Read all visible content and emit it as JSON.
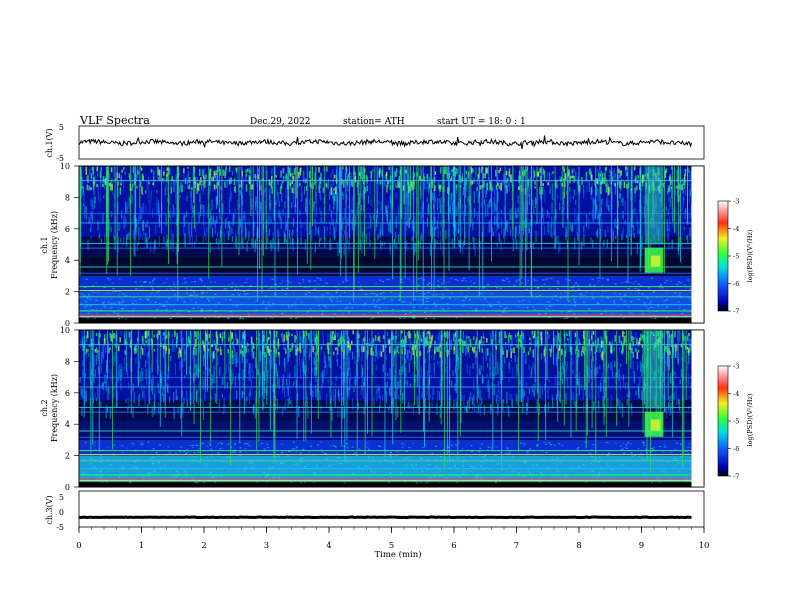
{
  "header": {
    "title": "VLF  Spectra",
    "date": "Dec.29, 2022",
    "station": "station= ATH",
    "start": "start  UT  =    18: 0   : 1"
  },
  "chart_data": [
    {
      "type": "line",
      "ylabel": "ch.1(V)",
      "ylim": [
        -5,
        5
      ],
      "yticks": [
        "5",
        "-5"
      ],
      "xlim": [
        0,
        10
      ],
      "series_mean": 0,
      "note_values": "noisy trace near 0 V across 0-9.8 min"
    },
    {
      "type": "heatmap",
      "ylabel_top": "ch.1",
      "ylabel": "Frequency  (kHz)",
      "ylim": [
        0,
        10
      ],
      "yticks": [
        "0",
        "2",
        "4",
        "6",
        "8",
        "10"
      ],
      "xlim": [
        0,
        10
      ],
      "colorbar": {
        "label": "log(PSD)(V²/Hz)",
        "ticks": [
          "-3",
          "-4",
          "-5",
          "-6",
          "-7"
        ],
        "range": [
          -7,
          -3
        ]
      }
    },
    {
      "type": "heatmap",
      "ylabel_top": "ch.2",
      "ylabel": "Frequency  (kHz)",
      "ylim": [
        0,
        10
      ],
      "yticks": [
        "0",
        "2",
        "4",
        "6",
        "8",
        "10"
      ],
      "xlim": [
        0,
        10
      ],
      "colorbar": {
        "label": "log(PSD)(V²/Hz)",
        "ticks": [
          "-3",
          "-4",
          "-5",
          "-6",
          "-7"
        ],
        "range": [
          -7,
          -3
        ]
      }
    },
    {
      "type": "line",
      "ylabel": "ch.3(V)",
      "ylim": [
        -5,
        5
      ],
      "yticks": [
        "5",
        "0",
        "-5"
      ],
      "xlim": [
        0,
        10
      ],
      "series_mean": -2.3,
      "xlabel": "Time  (min)",
      "xticks": [
        "0",
        "1",
        "2",
        "3",
        "4",
        "5",
        "6",
        "7",
        "8",
        "9",
        "10"
      ]
    }
  ],
  "colors": {
    "background": "#000000",
    "deep_blue": "#0000a0",
    "blue": "#1f3cff",
    "cyan": "#00d8e8",
    "green": "#33ee55",
    "yellow": "#f0f030",
    "red": "#ff2020"
  }
}
